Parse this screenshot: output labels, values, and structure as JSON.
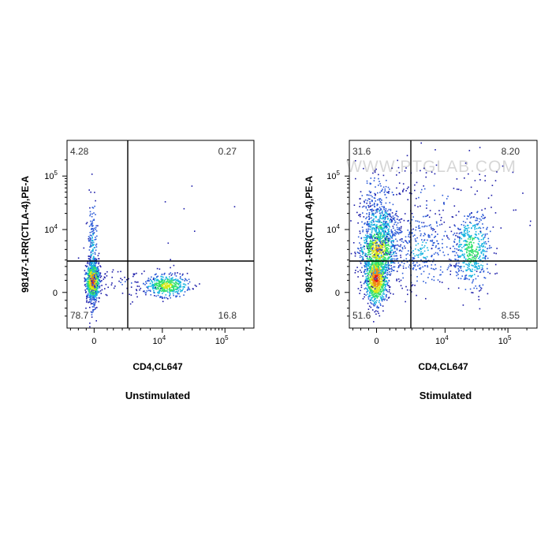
{
  "watermark": "WWW.PTGLAB.COM",
  "palette": [
    "#1a1aa8",
    "#2a5ad8",
    "#18b4e0",
    "#2ee06a",
    "#d8e818",
    "#f08a10",
    "#e01818"
  ],
  "chart_data": [
    {
      "type": "scatter",
      "subtype": "flow-cytometry-density-dot-plot",
      "title": "Unstimulated",
      "xlabel": "CD4,CL647",
      "ylabel": "98147-1-RR(CTLA-4),PE-A",
      "axis_scale": "biexponential",
      "x_ticks": [
        "0",
        "10^4",
        "10^5"
      ],
      "y_ticks": [
        "0",
        "10^4",
        "10^5"
      ],
      "quadrant_percentages": {
        "upper_left": "4.28",
        "upper_right": "0.27",
        "lower_left": "78.7",
        "lower_right": "16.8"
      },
      "populations": [
        {
          "name": "CD4- CTLA-4-",
          "x": -200,
          "y": 0,
          "density": "high"
        },
        {
          "name": "CD4+ CTLA-4-",
          "x": 10000,
          "y": 0,
          "density": "medium"
        }
      ],
      "grid": false,
      "legend": "none"
    },
    {
      "type": "scatter",
      "subtype": "flow-cytometry-density-dot-plot",
      "title": "Stimulated",
      "xlabel": "CD4,CL647",
      "ylabel": "98147-1-RR(CTLA-4),PE-A",
      "axis_scale": "biexponential",
      "x_ticks": [
        "0",
        "10^4",
        "10^5"
      ],
      "y_ticks": [
        "0",
        "10^4",
        "10^5"
      ],
      "quadrant_percentages": {
        "upper_left": "31.6",
        "upper_right": "8.20",
        "lower_left": "51.6",
        "lower_right": "8.55"
      },
      "populations": [
        {
          "name": "CD4- CTLA-4-",
          "x": -100,
          "y": 0,
          "density": "high"
        },
        {
          "name": "CD4- CTLA-4+",
          "x": 0,
          "y": 5000,
          "density": "high"
        },
        {
          "name": "CD4+ CTLA-4+/-",
          "x": 50000,
          "y": 3000,
          "density": "medium"
        }
      ],
      "grid": false,
      "legend": "none"
    }
  ]
}
